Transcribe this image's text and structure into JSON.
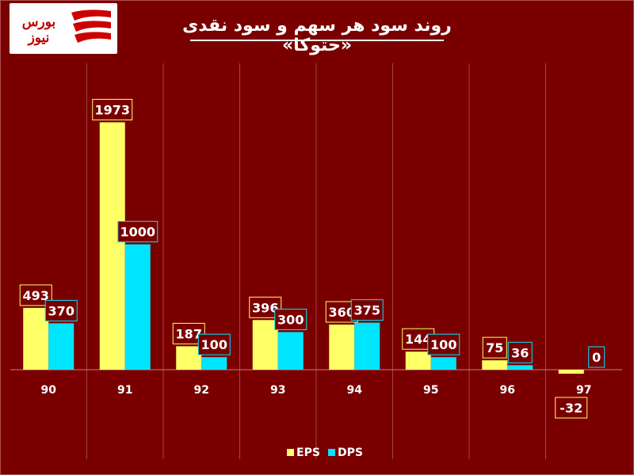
{
  "logo": {
    "text": "بورس نیوز",
    "accent": "#cc0000"
  },
  "chart_data": {
    "type": "bar",
    "title": "روند سود هر سهم و سود نقدی «حتوکا»",
    "categories": [
      "90",
      "91",
      "92",
      "93",
      "94",
      "95",
      "96",
      "97"
    ],
    "series": [
      {
        "name": "EPS",
        "color": "#ffff66",
        "values": [
          493,
          1973,
          187,
          396,
          360,
          144,
          75,
          -32
        ]
      },
      {
        "name": "DPS",
        "color": "#00e5ff",
        "values": [
          370,
          1000,
          100,
          300,
          375,
          100,
          36,
          0
        ]
      }
    ],
    "ylim": [
      -32,
      1973
    ],
    "grid": "vertical",
    "legend": "bottom-center"
  }
}
